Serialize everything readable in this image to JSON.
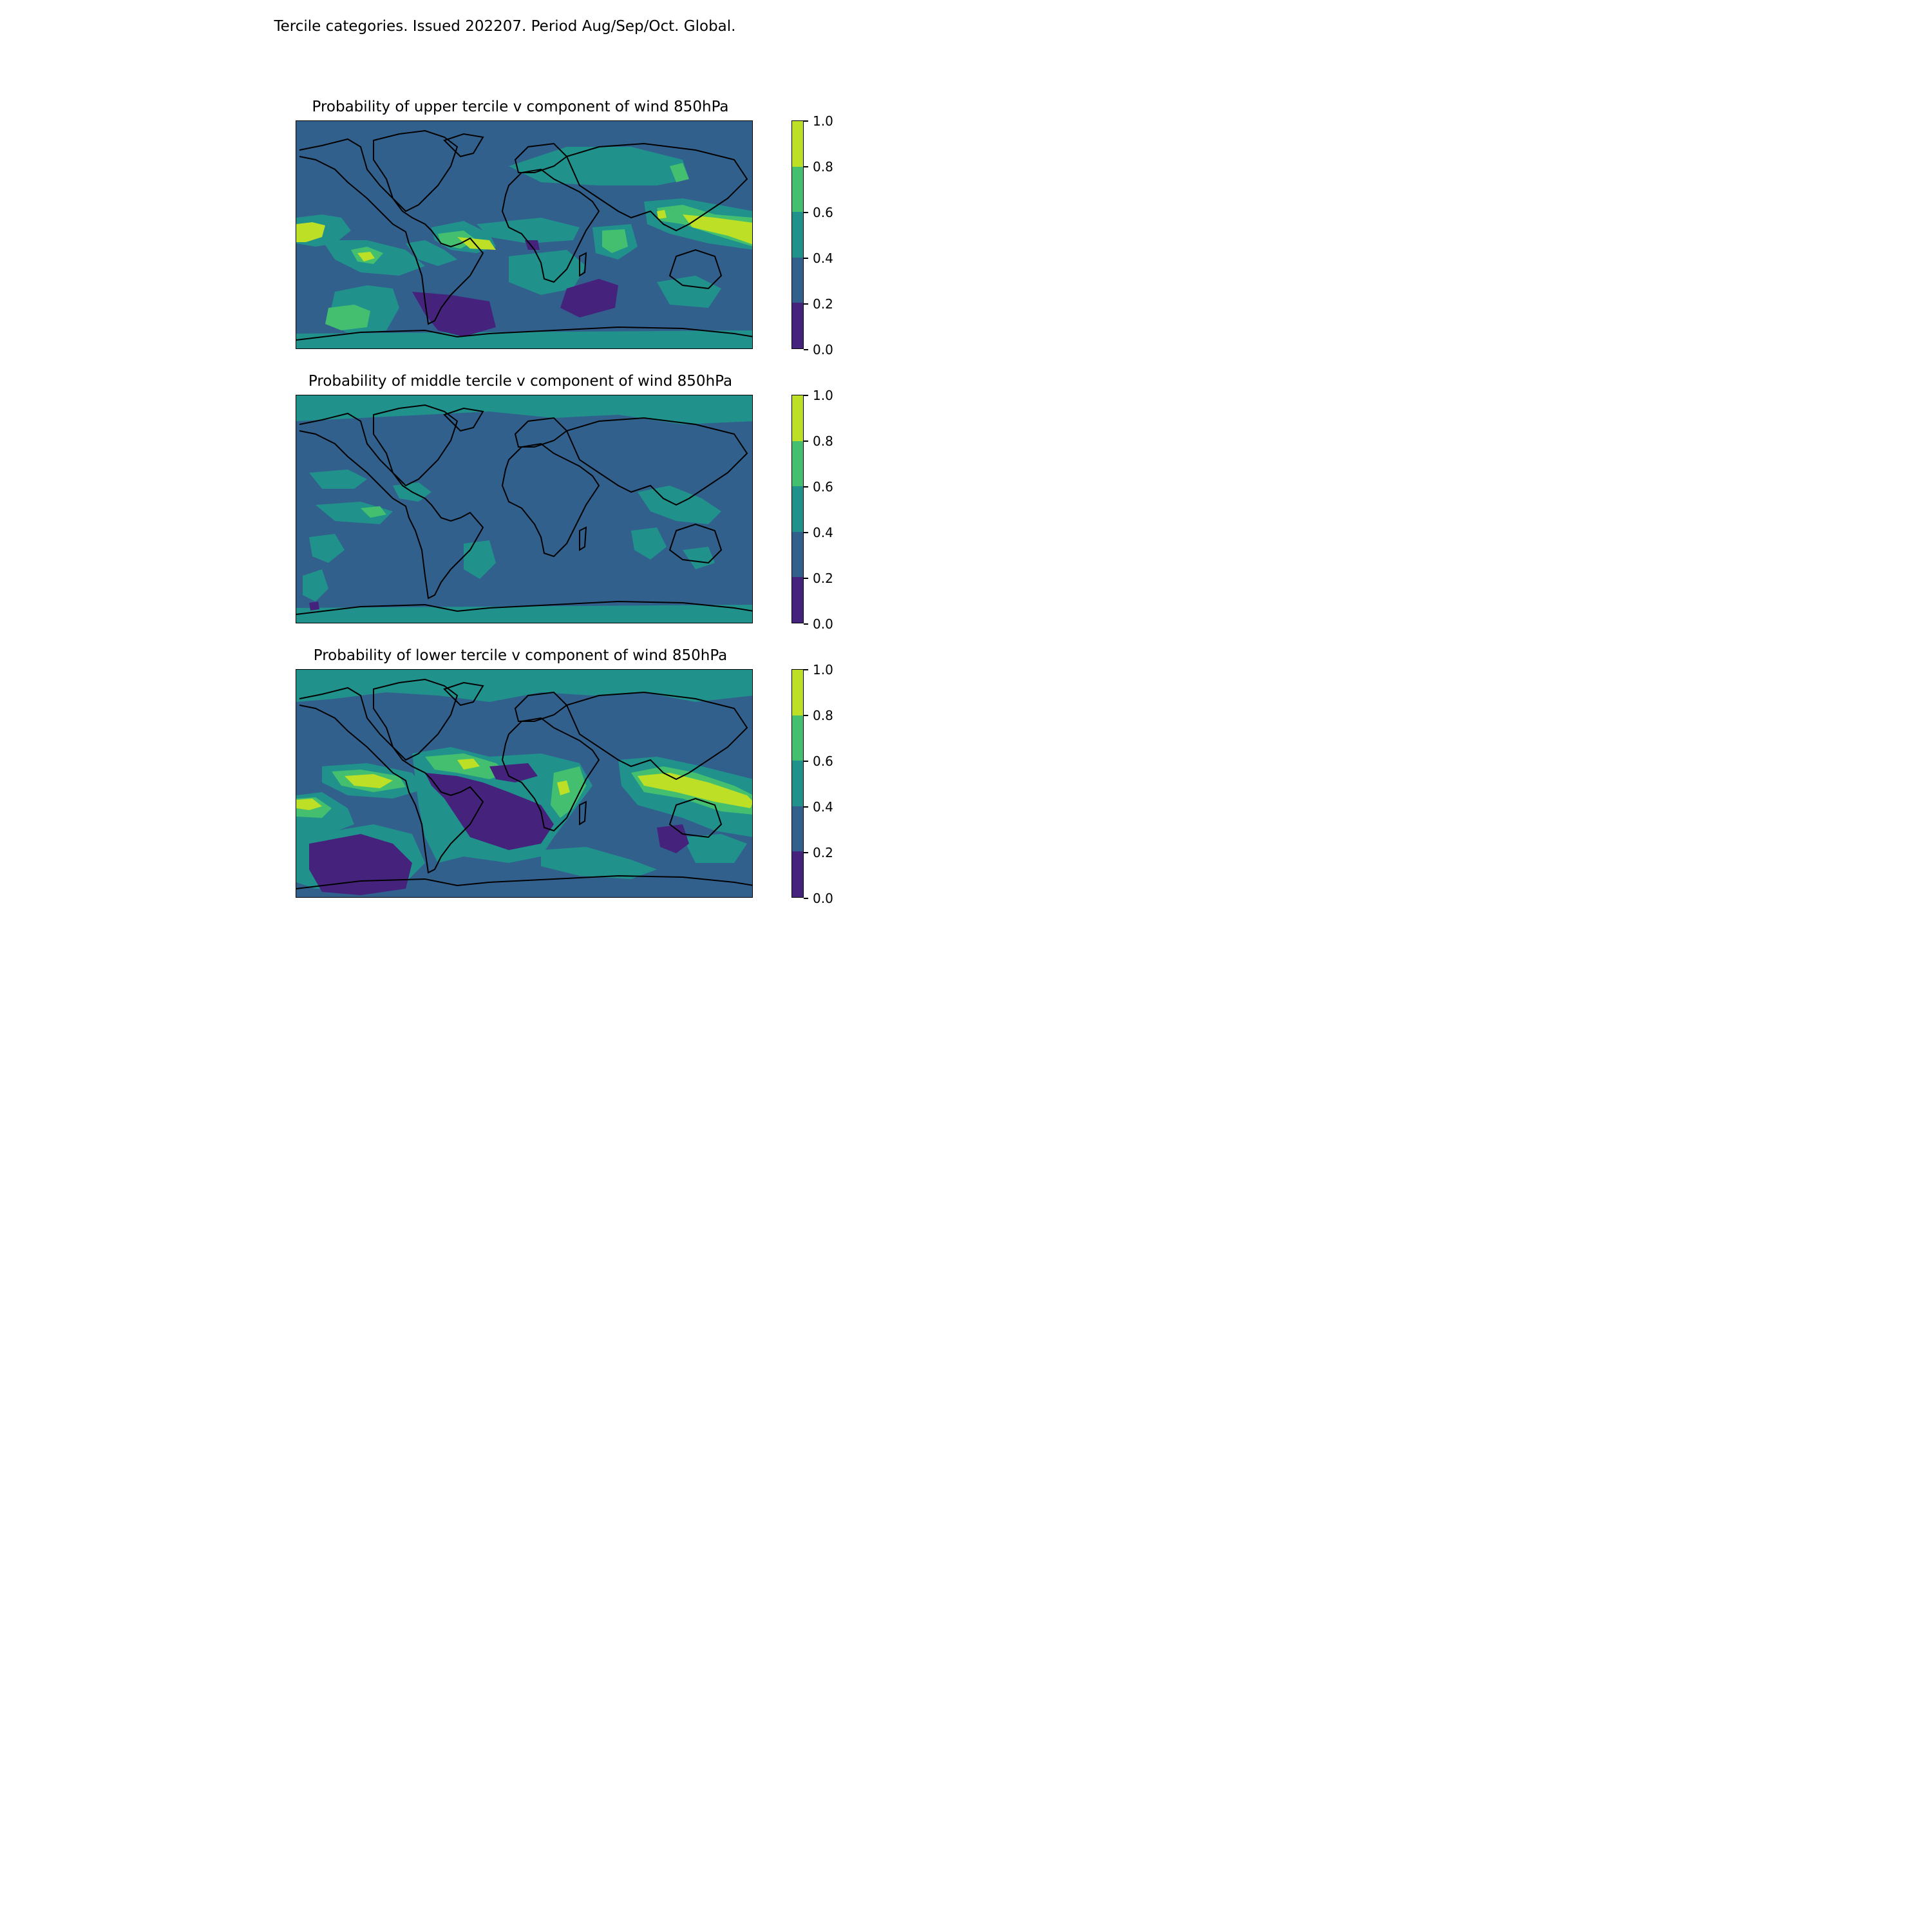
{
  "title": "Tercile categories. Issued 202207. Period Aug/Sep/Oct. Global.",
  "panels": [
    {
      "id": "upper",
      "title": "Probability of upper tercile v component of wind 850hPa"
    },
    {
      "id": "middle",
      "title": "Probability of middle tercile v component of wind 850hPa"
    },
    {
      "id": "lower",
      "title": "Probability of lower tercile v component of wind 850hPa"
    }
  ],
  "colorbar": {
    "ticks": [
      "0.0",
      "0.2",
      "0.4",
      "0.6",
      "0.8",
      "1.0"
    ],
    "bins": [
      {
        "range": [
          0.0,
          0.2
        ],
        "color": "#45237c"
      },
      {
        "range": [
          0.2,
          0.4
        ],
        "color": "#31608d"
      },
      {
        "range": [
          0.4,
          0.6
        ],
        "color": "#21918c"
      },
      {
        "range": [
          0.6,
          0.8
        ],
        "color": "#44bf70"
      },
      {
        "range": [
          0.8,
          1.0
        ],
        "color": "#bddf26"
      }
    ]
  }
}
